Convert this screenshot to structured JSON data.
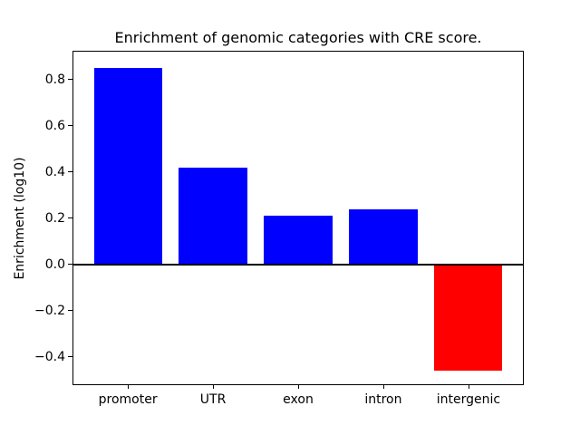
{
  "figure": {
    "background": "#ffffff",
    "plot_background": "#ffffff",
    "axis_color": "#000000"
  },
  "chart_data": {
    "type": "bar",
    "title": "Enrichment of genomic categories with CRE score.",
    "xlabel": "",
    "ylabel": "Enrichment (log10)",
    "categories": [
      "promoter",
      "UTR",
      "exon",
      "intron",
      "intergenic"
    ],
    "values": [
      0.85,
      0.42,
      0.21,
      0.24,
      -0.46
    ],
    "bar_colors": [
      "#0000ff",
      "#0000ff",
      "#0000ff",
      "#0000ff",
      "#ff0000"
    ],
    "positive_color": "#0000ff",
    "negative_color": "#ff0000",
    "bar_width": 0.8,
    "xlim": [
      -0.64,
      4.64
    ],
    "ylim": [
      -0.518,
      0.922
    ],
    "y_ticks": [
      {
        "value": -0.4,
        "label": "−0.4"
      },
      {
        "value": -0.2,
        "label": "−0.2"
      },
      {
        "value": 0.0,
        "label": "0.0"
      },
      {
        "value": 0.2,
        "label": "0.2"
      },
      {
        "value": 0.4,
        "label": "0.4"
      },
      {
        "value": 0.6,
        "label": "0.6"
      },
      {
        "value": 0.8,
        "label": "0.8"
      }
    ],
    "zero_line": true,
    "grid": false,
    "legend": null
  }
}
